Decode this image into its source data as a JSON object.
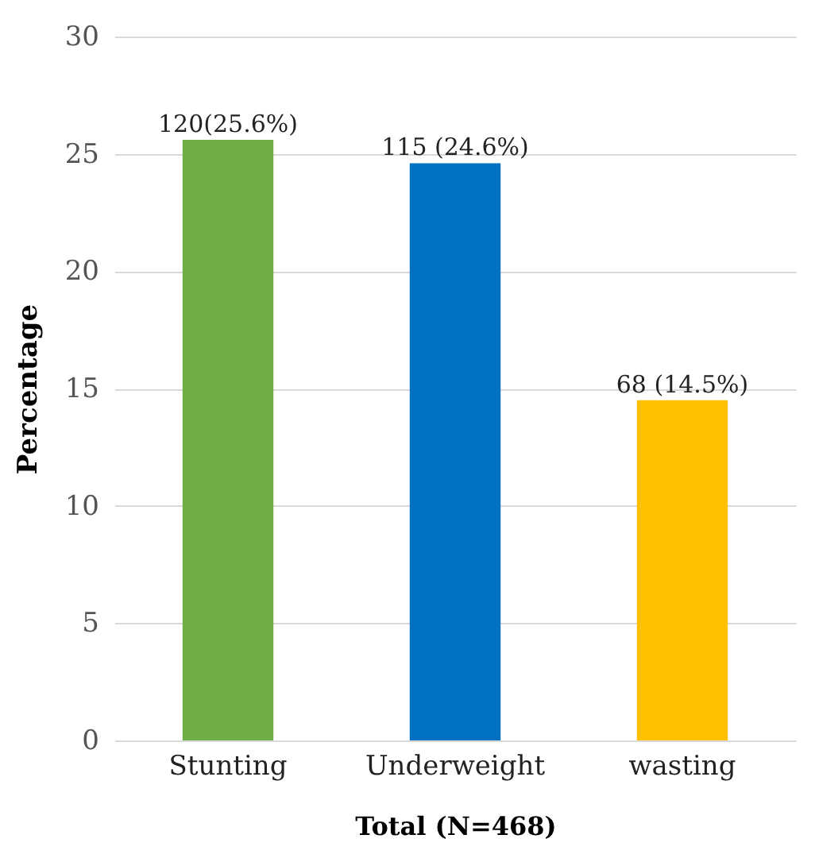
{
  "chart_data": {
    "type": "bar",
    "xlabel": "Total (N=468)",
    "ylabel": "Percentage",
    "categories": [
      "Stunting",
      "Underweight",
      "wasting"
    ],
    "values": [
      25.6,
      24.6,
      14.5
    ],
    "colors": [
      "#70ad47",
      "#0070c0",
      "#ffc000"
    ],
    "value_labels": [
      "120(25.6%)",
      "115 (24.6%)",
      "68 (14.5%)"
    ],
    "ylim": [
      0,
      30
    ],
    "yticks": [
      0,
      5,
      10,
      15,
      20,
      25,
      30
    ],
    "grid": "y"
  }
}
